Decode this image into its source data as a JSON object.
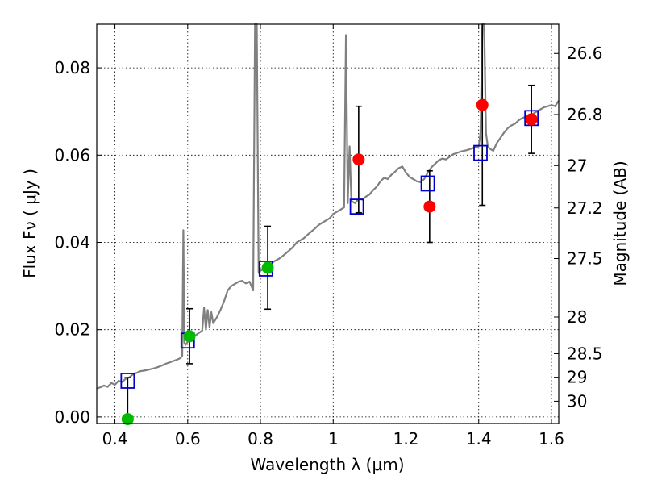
{
  "chart_data": {
    "type": "scatter",
    "xlabel": "Wavelength  λ (μm)",
    "ylabel": "Flux  Fν  ( μJy )",
    "ylabel_right": "Magnitude (AB)",
    "xlim": [
      0.35,
      1.62
    ],
    "ylim": [
      -0.0015,
      0.09
    ],
    "grid": true,
    "x_ticks": [
      {
        "value": 0.4,
        "label": "0.4"
      },
      {
        "value": 0.6,
        "label": "0.6"
      },
      {
        "value": 0.8,
        "label": "0.8"
      },
      {
        "value": 1.0,
        "label": "1"
      },
      {
        "value": 1.2,
        "label": "1.2"
      },
      {
        "value": 1.4,
        "label": "1.4"
      },
      {
        "value": 1.6,
        "label": "1.6"
      }
    ],
    "y_ticks": [
      {
        "value": 0.0,
        "label": "0.00"
      },
      {
        "value": 0.02,
        "label": "0.02"
      },
      {
        "value": 0.04,
        "label": "0.04"
      },
      {
        "value": 0.06,
        "label": "0.06"
      },
      {
        "value": 0.08,
        "label": "0.08"
      }
    ],
    "right_ticks": [
      {
        "label": "26.6",
        "flux": 0.0833
      },
      {
        "label": "26.8",
        "flux": 0.0693
      },
      {
        "label": "27",
        "flux": 0.0576
      },
      {
        "label": "27.2",
        "flux": 0.0479
      },
      {
        "label": "27.5",
        "flux": 0.0363
      },
      {
        "label": "28",
        "flux": 0.0229
      },
      {
        "label": "28.5",
        "flux": 0.0145
      },
      {
        "label": "29",
        "flux": 0.0091
      },
      {
        "label": "30",
        "flux": 0.0036
      }
    ],
    "spectrum": {
      "color": "#808080",
      "x": [
        0.35,
        0.36,
        0.37,
        0.38,
        0.39,
        0.4,
        0.41,
        0.42,
        0.43,
        0.44,
        0.45,
        0.46,
        0.47,
        0.48,
        0.49,
        0.5,
        0.51,
        0.52,
        0.53,
        0.54,
        0.55,
        0.56,
        0.57,
        0.58,
        0.585,
        0.588,
        0.591,
        0.594,
        0.6,
        0.61,
        0.62,
        0.63,
        0.64,
        0.645,
        0.65,
        0.655,
        0.66,
        0.665,
        0.67,
        0.68,
        0.69,
        0.7,
        0.71,
        0.72,
        0.73,
        0.74,
        0.75,
        0.76,
        0.77,
        0.78,
        0.785,
        0.79,
        0.795,
        0.8,
        0.81,
        0.82,
        0.83,
        0.84,
        0.85,
        0.86,
        0.87,
        0.88,
        0.89,
        0.9,
        0.91,
        0.92,
        0.93,
        0.94,
        0.95,
        0.96,
        0.97,
        0.98,
        0.99,
        1.0,
        1.01,
        1.02,
        1.03,
        1.035,
        1.04,
        1.045,
        1.05,
        1.06,
        1.07,
        1.08,
        1.09,
        1.1,
        1.11,
        1.12,
        1.13,
        1.14,
        1.15,
        1.16,
        1.17,
        1.18,
        1.19,
        1.2,
        1.21,
        1.22,
        1.23,
        1.24,
        1.25,
        1.26,
        1.27,
        1.28,
        1.29,
        1.3,
        1.31,
        1.32,
        1.33,
        1.34,
        1.35,
        1.36,
        1.37,
        1.38,
        1.39,
        1.4,
        1.405,
        1.41,
        1.415,
        1.42,
        1.425,
        1.43,
        1.44,
        1.45,
        1.46,
        1.47,
        1.48,
        1.49,
        1.5,
        1.51,
        1.52,
        1.53,
        1.54,
        1.55,
        1.56,
        1.57,
        1.58,
        1.59,
        1.6,
        1.61,
        1.62
      ],
      "y": [
        0.0065,
        0.0068,
        0.0072,
        0.0069,
        0.0078,
        0.0074,
        0.0083,
        0.008,
        0.0088,
        0.0091,
        0.0098,
        0.0101,
        0.0105,
        0.0106,
        0.0108,
        0.011,
        0.0112,
        0.0115,
        0.0118,
        0.0122,
        0.0125,
        0.0128,
        0.0131,
        0.0135,
        0.014,
        0.0428,
        0.017,
        0.0165,
        0.0172,
        0.018,
        0.0186,
        0.0192,
        0.0198,
        0.025,
        0.02,
        0.0245,
        0.0205,
        0.024,
        0.0215,
        0.0228,
        0.0245,
        0.0265,
        0.029,
        0.03,
        0.0305,
        0.031,
        0.0312,
        0.0306,
        0.031,
        0.029,
        0.09,
        0.09,
        0.033,
        0.0335,
        0.034,
        0.0345,
        0.0352,
        0.0358,
        0.0362,
        0.0368,
        0.0375,
        0.0382,
        0.039,
        0.04,
        0.0405,
        0.041,
        0.0418,
        0.0425,
        0.0432,
        0.044,
        0.0445,
        0.045,
        0.0455,
        0.0465,
        0.047,
        0.0475,
        0.048,
        0.0875,
        0.049,
        0.062,
        0.0495,
        0.049,
        0.05,
        0.0498,
        0.0505,
        0.051,
        0.052,
        0.0528,
        0.054,
        0.0548,
        0.0545,
        0.0555,
        0.0562,
        0.057,
        0.0574,
        0.056,
        0.055,
        0.0545,
        0.054,
        0.0538,
        0.0545,
        0.056,
        0.0572,
        0.058,
        0.0588,
        0.0592,
        0.059,
        0.0596,
        0.0602,
        0.0605,
        0.0608,
        0.061,
        0.0612,
        0.0615,
        0.0618,
        0.062,
        0.065,
        0.09,
        0.09,
        0.065,
        0.062,
        0.0615,
        0.061,
        0.0628,
        0.064,
        0.0652,
        0.0662,
        0.0668,
        0.0672,
        0.068,
        0.0685,
        0.0688,
        0.069,
        0.0695,
        0.07,
        0.0705,
        0.071,
        0.0712,
        0.0715,
        0.0712,
        0.0725
      ]
    },
    "model_points": {
      "marker": "square",
      "color": "#0000cc",
      "x": [
        0.435,
        0.6,
        0.815,
        1.065,
        1.26,
        1.405,
        1.545
      ],
      "y": [
        0.0083,
        0.0175,
        0.034,
        0.0482,
        0.0535,
        0.0605,
        0.0685
      ]
    },
    "observed_points": [
      {
        "x": 0.435,
        "y": -0.0005,
        "err": 0.0095,
        "color": "#00bb00"
      },
      {
        "x": 0.605,
        "y": 0.0185,
        "err": 0.0063,
        "color": "#00bb00"
      },
      {
        "x": 0.82,
        "y": 0.0342,
        "err": 0.0095,
        "color": "#00bb00"
      },
      {
        "x": 1.07,
        "y": 0.059,
        "err": 0.0122,
        "color": "#ff0000"
      },
      {
        "x": 1.265,
        "y": 0.0482,
        "err": 0.0082,
        "color": "#ff0000"
      },
      {
        "x": 1.41,
        "y": 0.0715,
        "err": 0.023,
        "color": "#ff0000"
      },
      {
        "x": 1.545,
        "y": 0.0682,
        "err": 0.0078,
        "color": "#ff0000"
      }
    ]
  }
}
